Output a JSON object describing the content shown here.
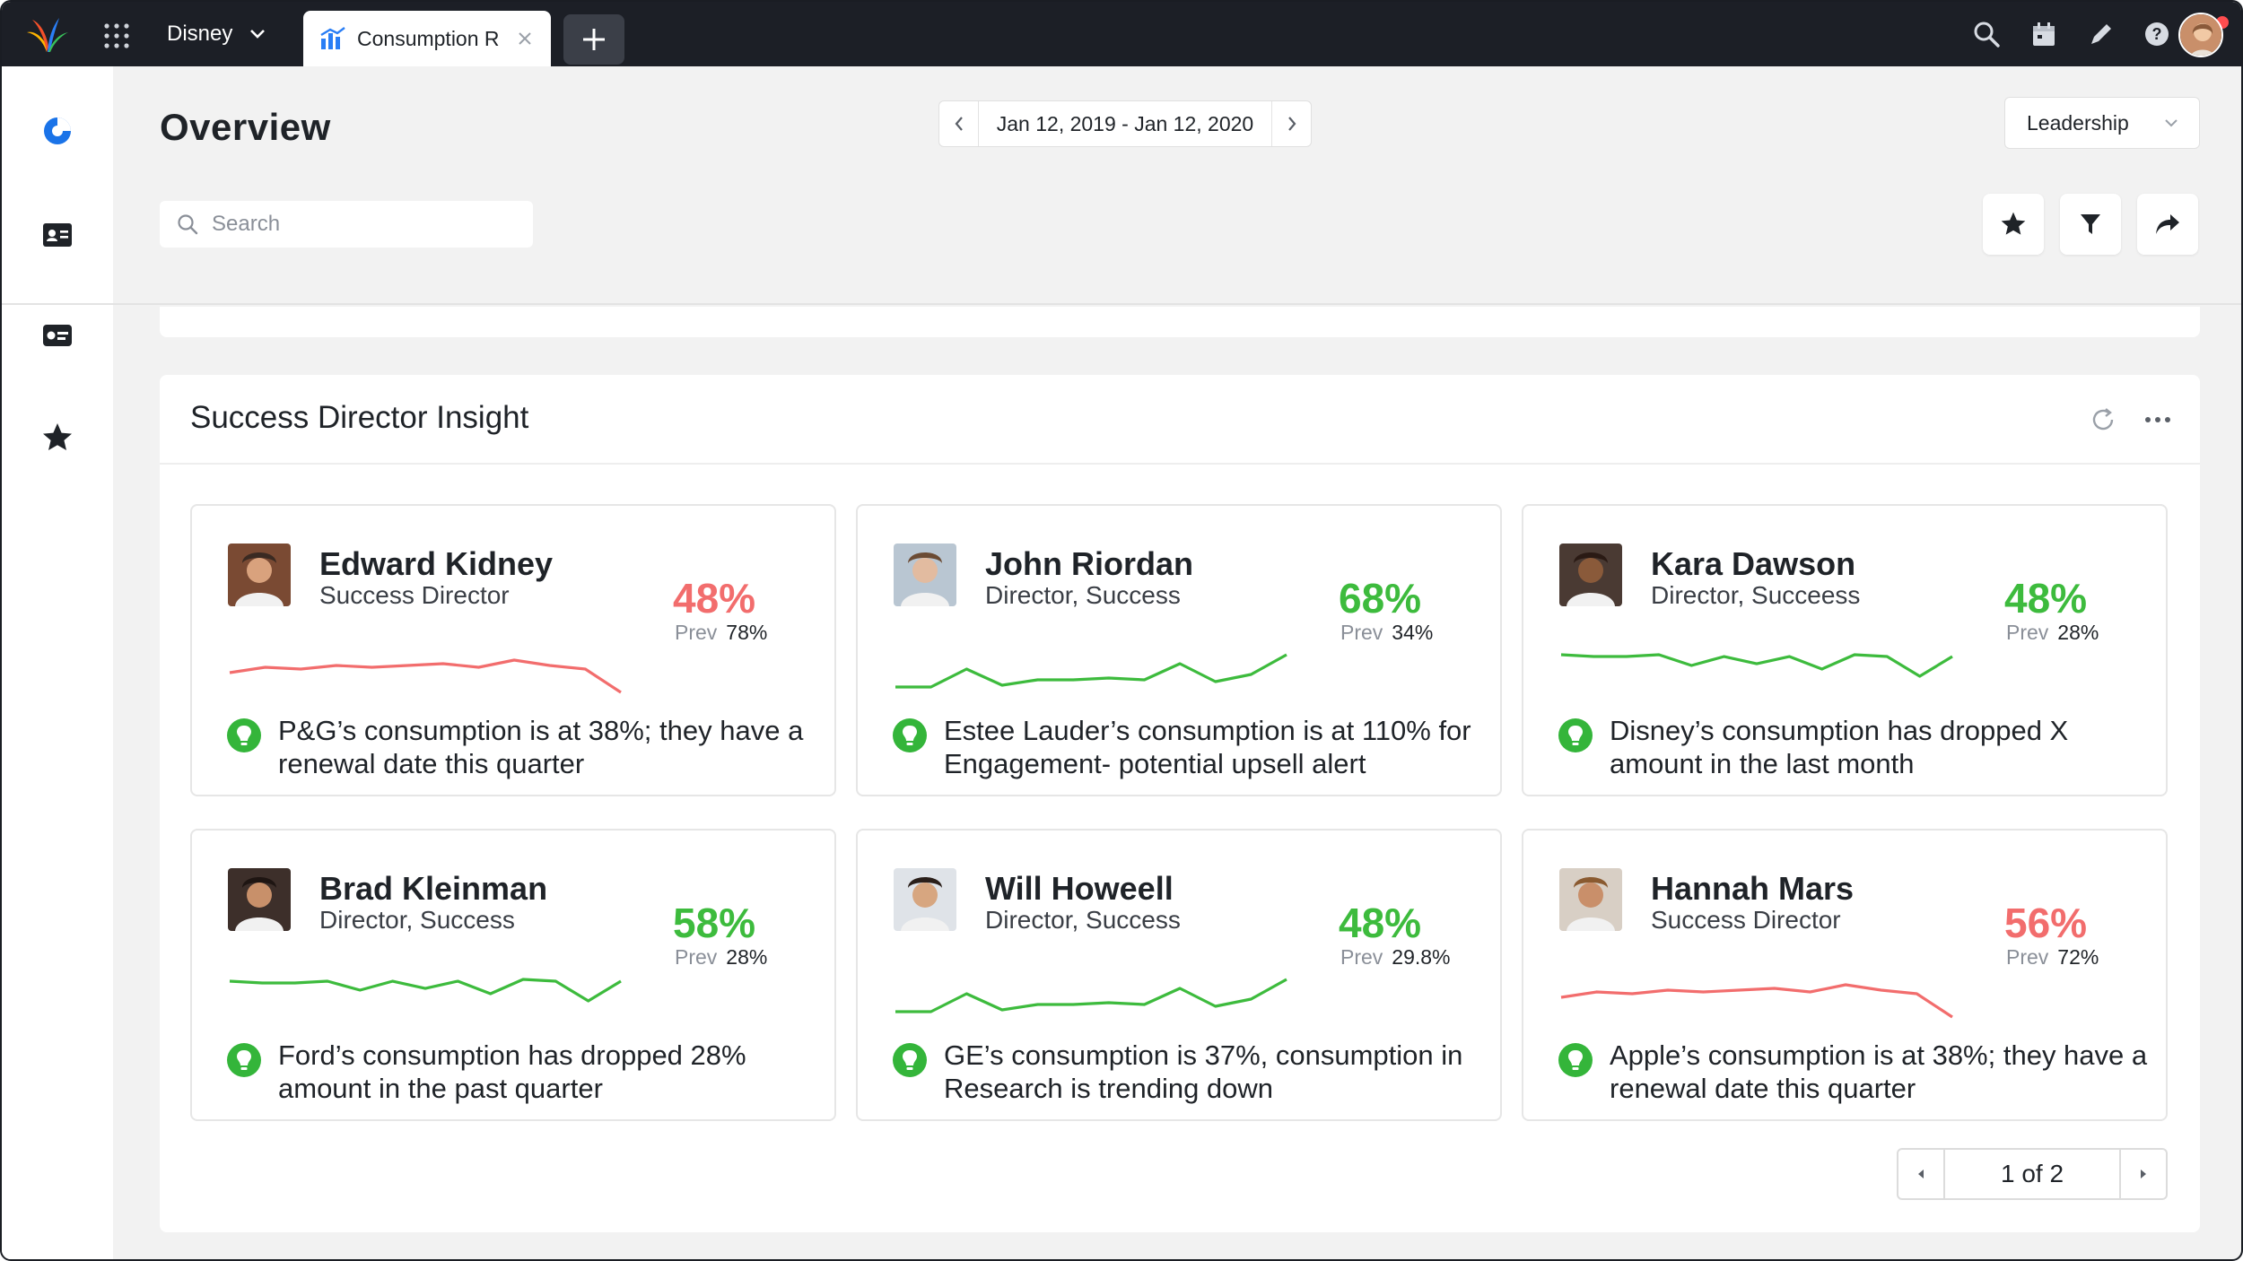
{
  "topbar": {
    "workspace": "Disney",
    "tab_label": "Consumption R",
    "icons": [
      "search-icon",
      "calendar-icon",
      "pencil-icon",
      "help-icon",
      "bell-icon",
      "chat-icon"
    ]
  },
  "rail": {
    "icons": [
      "dashboard-icon",
      "contact-card-icon",
      "id-card-icon",
      "star-icon"
    ],
    "accent": "#1a73e8"
  },
  "header": {
    "title": "Overview",
    "date_range": "Jan 12, 2019 - Jan 12, 2020",
    "view_select": "Leadership",
    "search_placeholder": "Search",
    "actions": [
      "star-icon",
      "filter-icon",
      "share-icon"
    ]
  },
  "panel": {
    "title": "Success Director Insight",
    "cards": [
      {
        "name": "Edward Kidney",
        "role": "Success Director",
        "pct": "48%",
        "trend": "down",
        "prev_label": "Prev",
        "prev_value": "78%",
        "spark": [
          42,
          45,
          44,
          46,
          45,
          46,
          47,
          45,
          49,
          46,
          44,
          31
        ],
        "insight": "P&G’s consumption is at 38%; they have a renewal date this quarter"
      },
      {
        "name": "John Riordan",
        "role": "Director, Success",
        "pct": "68%",
        "trend": "up",
        "prev_label": "Prev",
        "prev_value": "34%",
        "spark": [
          34,
          34,
          44,
          35,
          38,
          38,
          39,
          38,
          47,
          37,
          41,
          52
        ],
        "insight": "Estee Lauder’s consumption is at 110% for Engagement- potential upsell alert"
      },
      {
        "name": "Kara Dawson",
        "role": "Director, Succeess",
        "pct": "48%",
        "trend": "up",
        "prev_label": "Prev",
        "prev_value": "28%",
        "spark": [
          52,
          51,
          51,
          52,
          46,
          51,
          47,
          51,
          44,
          52,
          51,
          40,
          51
        ],
        "insight": "Disney’s consumption has dropped X amount in the last month"
      },
      {
        "name": "Brad Kleinman",
        "role": "Director, Success",
        "pct": "58%",
        "trend": "up",
        "prev_label": "Prev",
        "prev_value": "28%",
        "spark": [
          51,
          50,
          50,
          51,
          46,
          51,
          47,
          51,
          44,
          52,
          51,
          40,
          51
        ],
        "insight": "Ford’s consumption has dropped 28% amount in the past quarter"
      },
      {
        "name": "Will Howeell",
        "role": "Director, Success",
        "pct": "48%",
        "trend": "up",
        "prev_label": "Prev",
        "prev_value": "29.8%",
        "spark": [
          34,
          34,
          44,
          35,
          38,
          38,
          39,
          38,
          47,
          37,
          41,
          52
        ],
        "insight": "GE’s consumption is 37%, consumption in Research is trending down"
      },
      {
        "name": "Hannah Mars",
        "role": "Success Director",
        "pct": "56%",
        "trend": "down",
        "prev_label": "Prev",
        "prev_value": "72%",
        "spark": [
          42,
          45,
          44,
          46,
          45,
          46,
          47,
          45,
          49,
          46,
          44,
          31
        ],
        "insight": "Apple’s consumption is at 38%; they have a renewal date this quarter"
      }
    ],
    "pager": "1 of 2"
  },
  "colors": {
    "up": "#3dbb3d",
    "down": "#f26d6d",
    "spark_up": "#3dbb3d",
    "spark_down": "#f26d6d"
  }
}
